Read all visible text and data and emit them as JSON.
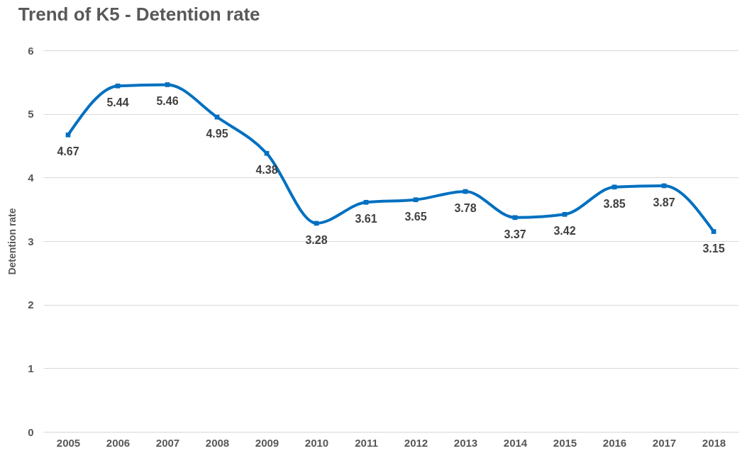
{
  "chart_data": {
    "type": "line",
    "title": "Trend of K5 - Detention rate",
    "ylabel": "Detention rate",
    "categories": [
      "2005",
      "2006",
      "2007",
      "2008",
      "2009",
      "2010",
      "2011",
      "2012",
      "2013",
      "2014",
      "2015",
      "2016",
      "2017",
      "2018"
    ],
    "series": [
      {
        "color": "#0070c0",
        "values": [
          4.67,
          5.44,
          5.46,
          4.95,
          4.38,
          3.28,
          3.61,
          3.65,
          3.78,
          3.37,
          3.42,
          3.85,
          3.87,
          3.15
        ]
      }
    ],
    "ylim": [
      0,
      6
    ],
    "yticks": [
      0,
      1,
      2,
      3,
      4,
      5,
      6
    ],
    "grid": "y",
    "marker": "square",
    "line_style": "solid",
    "data_labels": true
  }
}
